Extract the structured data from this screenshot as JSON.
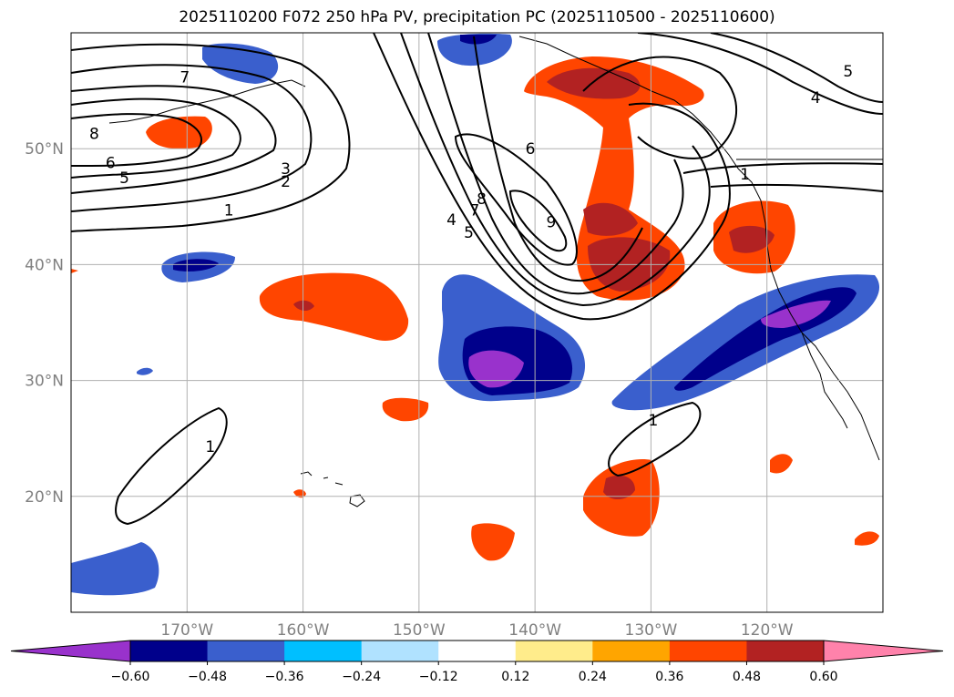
{
  "title": "2025110200 F072 250 hPa PV, precipitation PC (2025110500 - 2025110600)",
  "map": {
    "lon_range": [
      -180,
      -110
    ],
    "lat_range": [
      10,
      60
    ],
    "lat_ticks": [
      {
        "value": 20,
        "label": "20°N"
      },
      {
        "value": 30,
        "label": "30°N"
      },
      {
        "value": 40,
        "label": "40°N"
      },
      {
        "value": 50,
        "label": "50°N"
      }
    ],
    "lon_ticks": [
      {
        "value": -170,
        "label": "170°W"
      },
      {
        "value": -160,
        "label": "160°W"
      },
      {
        "value": -150,
        "label": "150°W"
      },
      {
        "value": -140,
        "label": "140°W"
      },
      {
        "value": -130,
        "label": "130°W"
      },
      {
        "value": -120,
        "label": "120°W"
      }
    ],
    "grid": true
  },
  "colorbar": {
    "colors": [
      "#9932cc",
      "#00008b",
      "#3a5fcd",
      "#00bfff",
      "#b0e2ff",
      "#ffffff",
      "#ffec8b",
      "#ffa500",
      "#ff4500",
      "#b22222",
      "#ff82ab"
    ],
    "tick_labels": [
      "−0.60",
      "−0.48",
      "−0.36",
      "−0.24",
      "−0.12",
      "0.12",
      "0.24",
      "0.36",
      "0.48",
      "0.60"
    ]
  },
  "pv_contour_labels": [
    {
      "text": "8",
      "lon": -178,
      "lat": 51.3
    },
    {
      "text": "7",
      "lon": -170.2,
      "lat": 56.2
    },
    {
      "text": "6",
      "lon": -176.6,
      "lat": 48.8
    },
    {
      "text": "5",
      "lon": -175.4,
      "lat": 47.5
    },
    {
      "text": "3",
      "lon": -161.5,
      "lat": 48.3
    },
    {
      "text": "2",
      "lon": -161.5,
      "lat": 47.2
    },
    {
      "text": "1",
      "lon": -166.4,
      "lat": 44.7
    },
    {
      "text": "6",
      "lon": -140.4,
      "lat": 50.0
    },
    {
      "text": "8",
      "lon": -144.6,
      "lat": 45.7
    },
    {
      "text": "7",
      "lon": -145.2,
      "lat": 44.7
    },
    {
      "text": "4",
      "lon": -147.2,
      "lat": 43.9
    },
    {
      "text": "5",
      "lon": -145.7,
      "lat": 42.8
    },
    {
      "text": "9",
      "lon": -138.6,
      "lat": 43.7
    },
    {
      "text": "1",
      "lon": -121.9,
      "lat": 47.8
    },
    {
      "text": "4",
      "lon": -115.8,
      "lat": 54.4
    },
    {
      "text": "5",
      "lon": -113.0,
      "lat": 56.7
    },
    {
      "text": "1",
      "lon": -168.0,
      "lat": 24.3
    },
    {
      "text": "1",
      "lon": -129.8,
      "lat": 26.6
    }
  ]
}
